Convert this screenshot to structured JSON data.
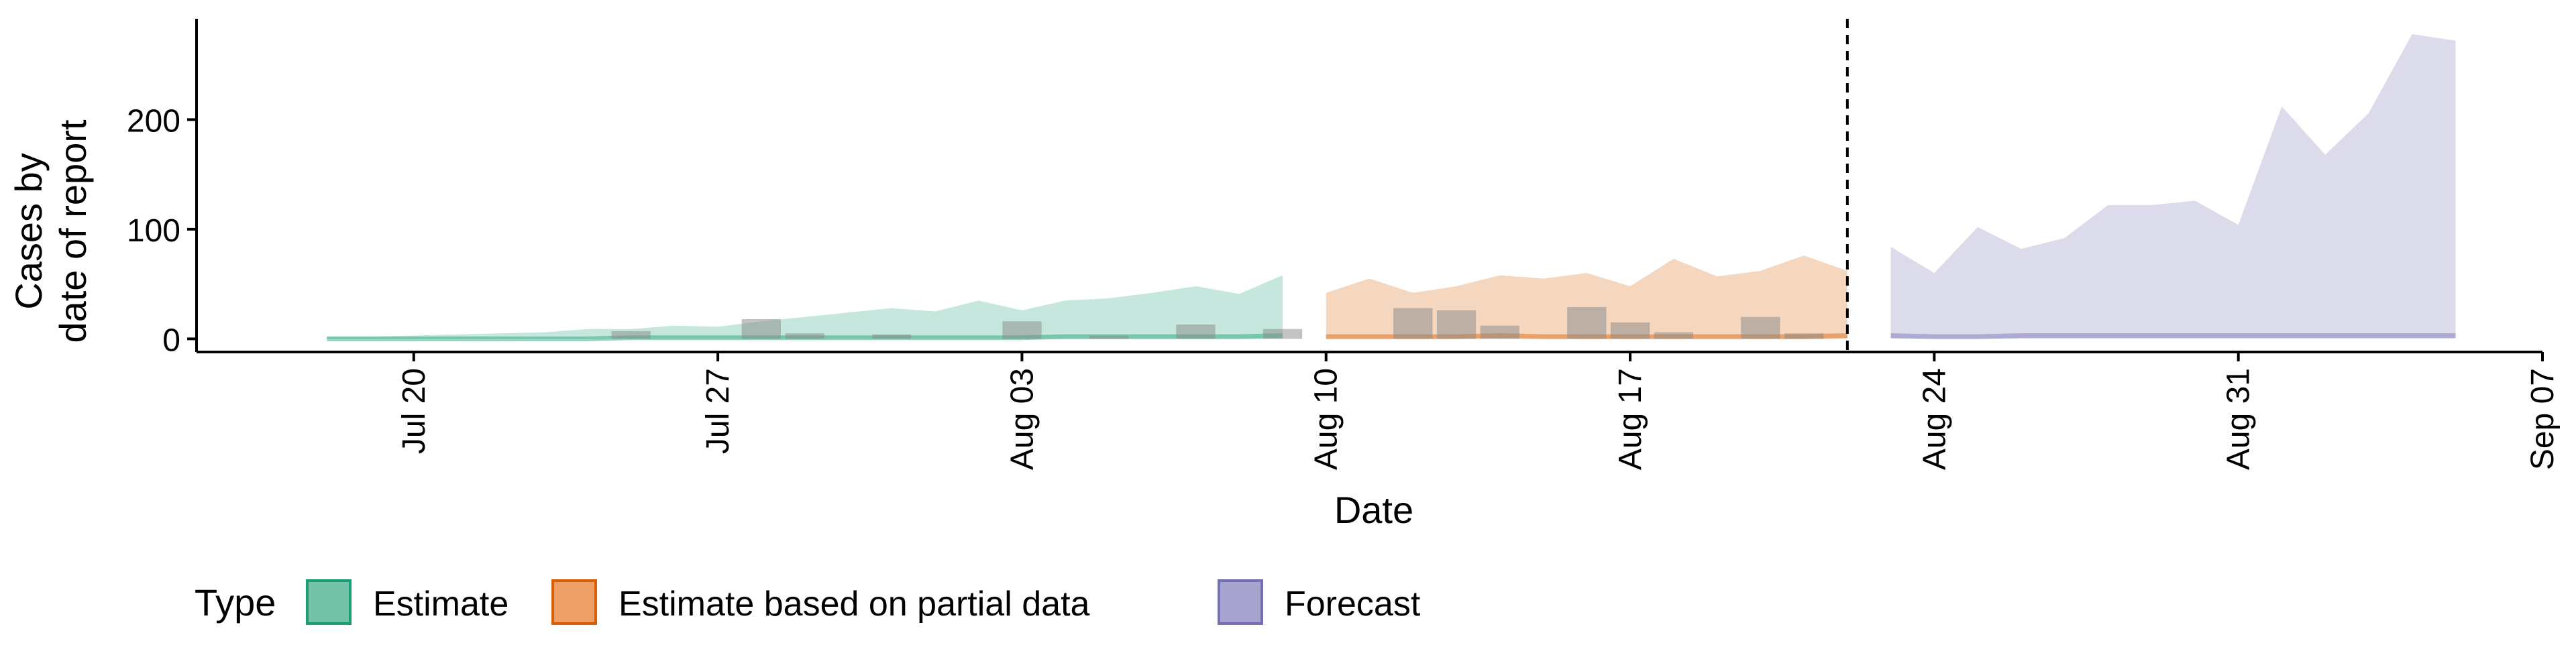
{
  "chart_data": {
    "type": "area",
    "title": "",
    "xlabel": "Date",
    "ylabel_line1": "Cases by",
    "ylabel_line2": "date of report",
    "xlim": [
      "2020-07-15",
      "2020-09-07"
    ],
    "ylim": [
      -12,
      292
    ],
    "grid": false,
    "x_ticks": [
      {
        "date": "2020-07-20",
        "label": "Jul 20"
      },
      {
        "date": "2020-07-27",
        "label": "Jul 27"
      },
      {
        "date": "2020-08-03",
        "label": "Aug 03"
      },
      {
        "date": "2020-08-10",
        "label": "Aug 10"
      },
      {
        "date": "2020-08-17",
        "label": "Aug 17"
      },
      {
        "date": "2020-08-24",
        "label": "Aug 24"
      },
      {
        "date": "2020-08-31",
        "label": "Aug 31"
      },
      {
        "date": "2020-09-07",
        "label": "Sep 07"
      }
    ],
    "y_ticks": [
      {
        "value": 0,
        "label": "0"
      },
      {
        "value": 100,
        "label": "100"
      },
      {
        "value": 200,
        "label": "200"
      }
    ],
    "forecast_date": "2020-08-22",
    "legend": {
      "title": "Type",
      "position": "bottom-left",
      "entries": [
        {
          "label": "Estimate",
          "fill": "#74c3a8",
          "stroke": "#1b9e77"
        },
        {
          "label": "Estimate based on partial data",
          "fill": "#eda066",
          "stroke": "#d95f02"
        },
        {
          "label": "Forecast",
          "fill": "#a8a4d0",
          "stroke": "#7570b3"
        }
      ]
    },
    "series": [
      {
        "type_label": "Estimate",
        "fill": "#1b9e77",
        "line": "#1b9e77",
        "x": [
          "2020-07-18",
          "2020-07-19",
          "2020-07-20",
          "2020-07-21",
          "2020-07-22",
          "2020-07-23",
          "2020-07-24",
          "2020-07-25",
          "2020-07-26",
          "2020-07-27",
          "2020-07-28",
          "2020-07-29",
          "2020-07-30",
          "2020-07-31",
          "2020-08-01",
          "2020-08-02",
          "2020-08-03",
          "2020-08-04",
          "2020-08-05",
          "2020-08-06",
          "2020-08-07",
          "2020-08-08",
          "2020-08-09"
        ],
        "upper": [
          2,
          2,
          3,
          4,
          5,
          6,
          9,
          9,
          12,
          11,
          16,
          20,
          24,
          28,
          25,
          35,
          26,
          35,
          37,
          42,
          48,
          41,
          58
        ],
        "lower": [
          0,
          0,
          0,
          0,
          0,
          0,
          0,
          0,
          0,
          0,
          0,
          0,
          0,
          0,
          0,
          0,
          0,
          0,
          0,
          0,
          0,
          0,
          0
        ],
        "median": [
          0,
          0,
          0,
          0,
          0,
          0,
          0,
          1,
          1,
          1,
          1,
          1,
          1,
          1,
          1,
          1,
          1,
          2,
          2,
          2,
          2,
          2,
          3
        ]
      },
      {
        "type_label": "Estimate based on partial data",
        "fill": "#d95f02",
        "line": "#d95f02",
        "x": [
          "2020-08-10",
          "2020-08-11",
          "2020-08-12",
          "2020-08-13",
          "2020-08-14",
          "2020-08-15",
          "2020-08-16",
          "2020-08-17",
          "2020-08-18",
          "2020-08-19",
          "2020-08-20",
          "2020-08-21",
          "2020-08-22"
        ],
        "upper": [
          42,
          55,
          42,
          48,
          58,
          55,
          60,
          48,
          73,
          57,
          62,
          76,
          62
        ],
        "lower": [
          0,
          0,
          0,
          0,
          0,
          0,
          0,
          0,
          0,
          0,
          0,
          0,
          0
        ],
        "median": [
          2,
          2,
          2,
          2,
          3,
          2,
          2,
          2,
          2,
          2,
          2,
          2,
          3
        ]
      },
      {
        "type_label": "Forecast",
        "fill": "#7570b3",
        "line": "#7570b3",
        "x": [
          "2020-08-23",
          "2020-08-24",
          "2020-08-25",
          "2020-08-26",
          "2020-08-27",
          "2020-08-28",
          "2020-08-29",
          "2020-08-30",
          "2020-08-31",
          "2020-09-01",
          "2020-09-02",
          "2020-09-03",
          "2020-09-04",
          "2020-09-05"
        ],
        "upper": [
          84,
          60,
          102,
          82,
          92,
          122,
          122,
          126,
          104,
          212,
          168,
          206,
          278,
          272
        ],
        "lower": [
          0,
          0,
          0,
          0,
          0,
          0,
          0,
          0,
          0,
          0,
          0,
          0,
          0,
          0
        ],
        "median": [
          3,
          2,
          2,
          3,
          3,
          3,
          3,
          3,
          3,
          3,
          3,
          3,
          3,
          3
        ]
      }
    ],
    "reported_cases": {
      "color": "#888888",
      "x": [
        "2020-07-25",
        "2020-07-28",
        "2020-07-29",
        "2020-07-31",
        "2020-08-03",
        "2020-08-05",
        "2020-08-07",
        "2020-08-09",
        "2020-08-12",
        "2020-08-13",
        "2020-08-14",
        "2020-08-16",
        "2020-08-17",
        "2020-08-18",
        "2020-08-20",
        "2020-08-21"
      ],
      "values": [
        7,
        18,
        5,
        4,
        16,
        3,
        13,
        9,
        28,
        26,
        12,
        29,
        15,
        6,
        20,
        5
      ]
    }
  }
}
